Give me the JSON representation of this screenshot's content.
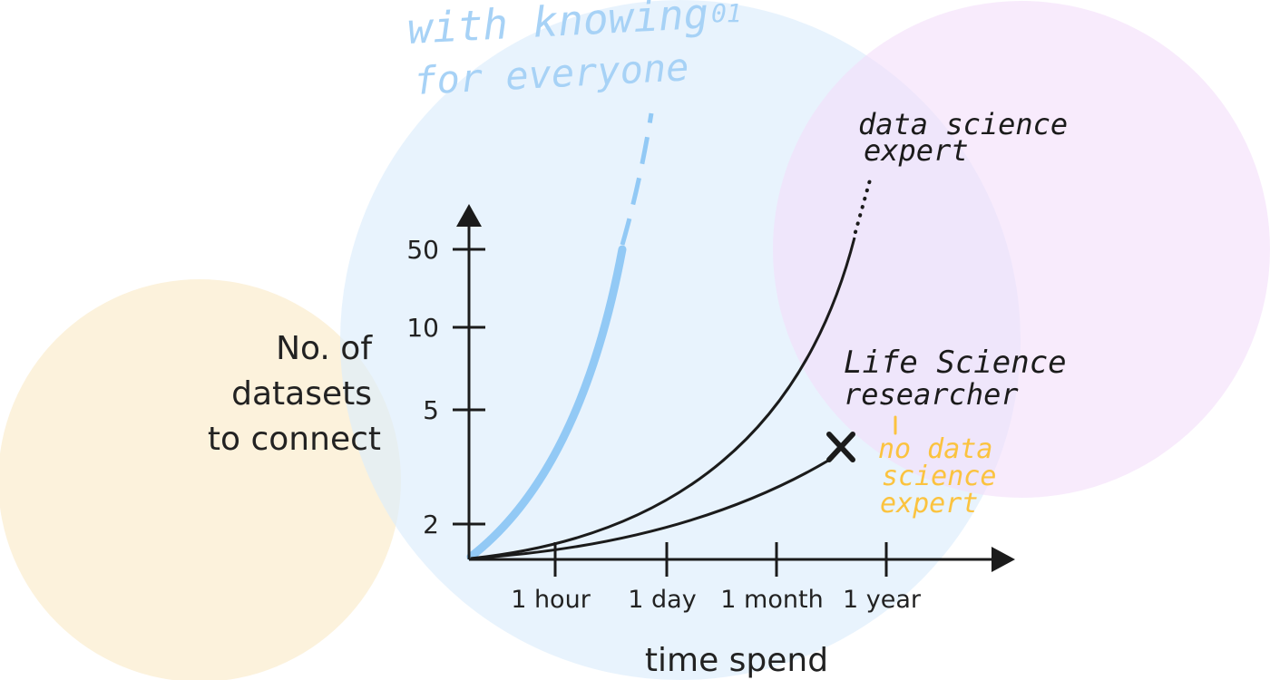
{
  "colors": {
    "blue_circle": "#dcedfc",
    "yellow_circle": "#fcf0d6",
    "purple_circle": "#f3defa",
    "knowing_curve": "#92c9f5",
    "knowing_text": "#a7d2f6",
    "expert_curves": "#1b1b1b",
    "annotation_orange": "#fbc33f",
    "axis": "#1b1b1b"
  },
  "chart_data": {
    "type": "line",
    "xlabel": "time spend",
    "ylabel_lines": [
      "No. of",
      "datasets",
      "to connect"
    ],
    "x_ticks": [
      "1 hour",
      "1 day",
      "1 month",
      "1 year"
    ],
    "y_ticks": [
      "2",
      "5",
      "10",
      "50"
    ],
    "y_scale": "log",
    "series": [
      {
        "name": "with knowing01 for everyone",
        "label_lines": [
          "with knowing",
          "01",
          "for everyone"
        ],
        "style": "thick",
        "continuation": "dashed",
        "points": [
          {
            "x": "start",
            "y": 1
          },
          {
            "x": "1 hour",
            "y": 3
          },
          {
            "x": "between 1 hour and 1 day",
            "y": 50
          }
        ]
      },
      {
        "name": "data science expert",
        "label_lines": [
          "data science",
          "expert"
        ],
        "style": "thin",
        "continuation": "dotted",
        "points": [
          {
            "x": "start",
            "y": 1
          },
          {
            "x": "1 day",
            "y": 2
          },
          {
            "x": "1 year",
            "y": 50
          }
        ]
      },
      {
        "name": "Life Science researcher",
        "label_lines": [
          "Life Science",
          "researcher"
        ],
        "sub_label_lines": [
          "no data",
          "science",
          "expert"
        ],
        "style": "thin",
        "end_marker": "cross",
        "points": [
          {
            "x": "start",
            "y": 1
          },
          {
            "x": "1 month",
            "y": 2
          },
          {
            "x": "1 year",
            "y": 3
          }
        ]
      }
    ]
  }
}
